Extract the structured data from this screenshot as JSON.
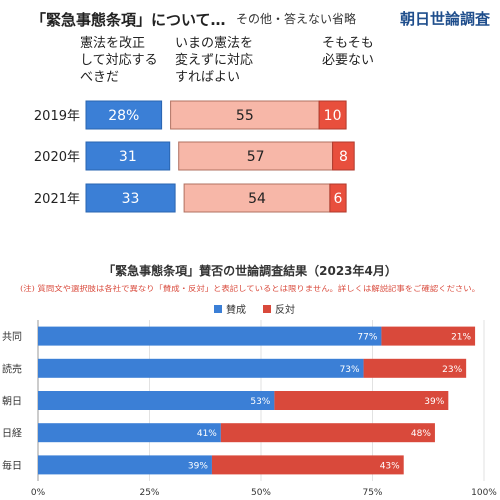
{
  "chart_data": [
    {
      "type": "bar",
      "stacked": true,
      "title": "「緊急事態条項」について…",
      "note": "その他・答えない省略",
      "brand": "朝日世論調査",
      "categories": [
        "2019年",
        "2020年",
        "2021年"
      ],
      "series": [
        {
          "name": "憲法を改正して対応するべきだ",
          "values": [
            28,
            31,
            33
          ],
          "color": "#3b7fd6"
        },
        {
          "name": "いまの憲法を変えずに対応すればよい",
          "values": [
            55,
            57,
            54
          ],
          "color": "#f7b7a8"
        },
        {
          "name": "そもそも必要ない",
          "values": [
            10,
            8,
            6
          ],
          "color": "#e84f3d"
        }
      ],
      "series_label_lines": [
        [
          "憲法を改正",
          "して対応する",
          "べきだ"
        ],
        [
          "いまの憲法を",
          "変えずに対応",
          "すればよい"
        ],
        [
          "そもそも",
          "必要ない"
        ]
      ],
      "value_labels": [
        [
          "28%",
          "31",
          "33"
        ],
        [
          "55",
          "57",
          "54"
        ],
        [
          "10",
          "8",
          "6"
        ]
      ]
    },
    {
      "type": "bar",
      "orientation": "horizontal",
      "stacked": true,
      "title": "「緊急事態条項」賛否の世論調査結果（2023年4月）",
      "subtitle": "(注) 質問文や選択肢は各社で異なり「賛成・反対」と表記しているとは限りません。詳しくは解説記事をご確認ください。",
      "categories": [
        "共同",
        "読売",
        "朝日",
        "日経",
        "毎日"
      ],
      "series": [
        {
          "name": "賛成",
          "values": [
            77,
            73,
            53,
            41,
            39
          ],
          "color": "#3b7fd6"
        },
        {
          "name": "反対",
          "values": [
            21,
            23,
            39,
            48,
            43
          ],
          "color": "#d9493b"
        }
      ],
      "xlim": [
        0,
        100
      ],
      "xticks": [
        "0%",
        "25%",
        "50%",
        "75%",
        "100%"
      ],
      "legend": "top-center",
      "grid": true
    }
  ]
}
